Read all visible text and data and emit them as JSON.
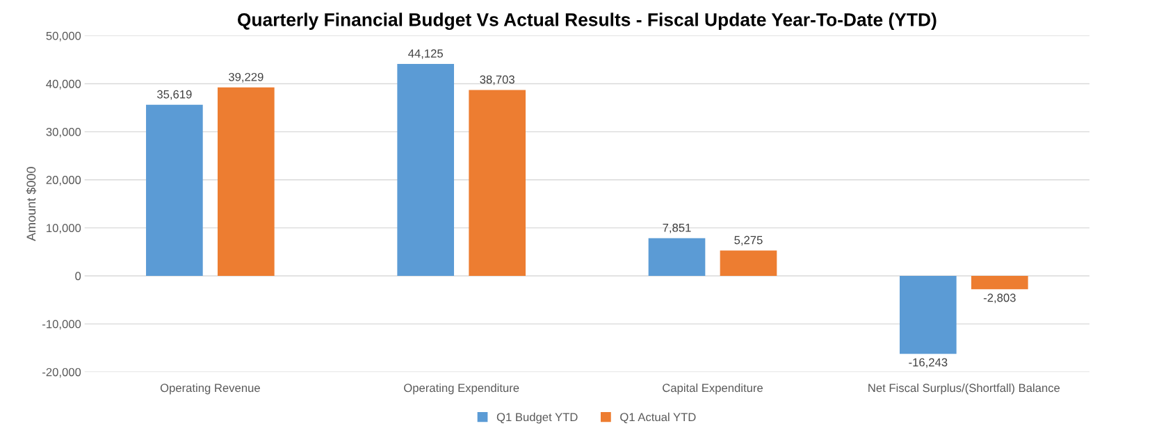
{
  "chart_data": {
    "type": "bar",
    "title": "Quarterly Financial Budget Vs Actual Results - Fiscal Update Year-To-Date (YTD)",
    "ylabel": "Amount $000",
    "categories": [
      "Operating Revenue",
      "Operating Expenditure",
      "Capital Expenditure",
      "Net Fiscal Surplus/(Shortfall) Balance"
    ],
    "series": [
      {
        "name": "Q1 Budget YTD",
        "color": "#5b9bd5",
        "values": [
          35619,
          44125,
          7851,
          -16243
        ],
        "value_labels": [
          "35,619",
          "44,125",
          "7,851",
          "-16,243"
        ]
      },
      {
        "name": "Q1 Actual YTD",
        "color": "#ed7d31",
        "values": [
          39229,
          38703,
          5275,
          -2803
        ],
        "value_labels": [
          "39,229",
          "38,703",
          "5,275",
          "-2,803"
        ]
      }
    ],
    "ylim": [
      -20000,
      50000
    ],
    "yticks": [
      {
        "value": -20000,
        "label": "-20,000"
      },
      {
        "value": -10000,
        "label": "-10,000"
      },
      {
        "value": 0,
        "label": "0"
      },
      {
        "value": 10000,
        "label": "10,000"
      },
      {
        "value": 20000,
        "label": "20,000"
      },
      {
        "value": 30000,
        "label": "30,000"
      },
      {
        "value": 40000,
        "label": "40,000"
      },
      {
        "value": 50000,
        "label": "50,000"
      }
    ],
    "grid": "y",
    "legend": "bottom"
  }
}
